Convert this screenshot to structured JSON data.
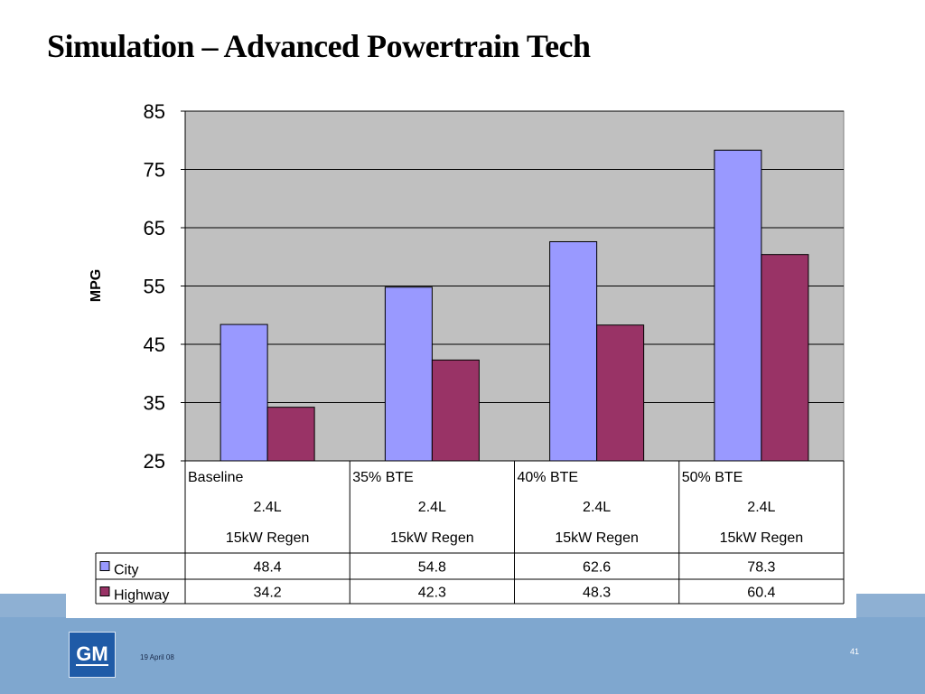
{
  "slide": {
    "title": "Simulation – Advanced Powertrain Tech",
    "date": "19 April 08",
    "page_number": "41",
    "logo_text": "GM"
  },
  "colors": {
    "city": "#9999ff",
    "highway": "#993366",
    "plot_bg": "#c0c0c0",
    "footer": "#7fa7cf",
    "logo": "#1f5ba7"
  },
  "chart_data": {
    "type": "bar",
    "ylabel": "MPG",
    "ylim": [
      25,
      85
    ],
    "yticks": [
      25,
      35,
      45,
      55,
      65,
      75,
      85
    ],
    "grid": true,
    "categories": [
      {
        "line1": "Baseline",
        "line2": "2.4L",
        "line3": "15kW Regen"
      },
      {
        "line1": "35% BTE",
        "line2": "2.4L",
        "line3": "15kW Regen"
      },
      {
        "line1": "40% BTE",
        "line2": "2.4L",
        "line3": "15kW Regen"
      },
      {
        "line1": "50% BTE",
        "line2": "2.4L",
        "line3": "15kW Regen"
      }
    ],
    "series": [
      {
        "name": "City",
        "values": [
          48.4,
          54.8,
          62.6,
          78.3
        ]
      },
      {
        "name": "Highway",
        "values": [
          34.2,
          42.3,
          48.3,
          60.4
        ]
      }
    ],
    "data_table": true
  }
}
